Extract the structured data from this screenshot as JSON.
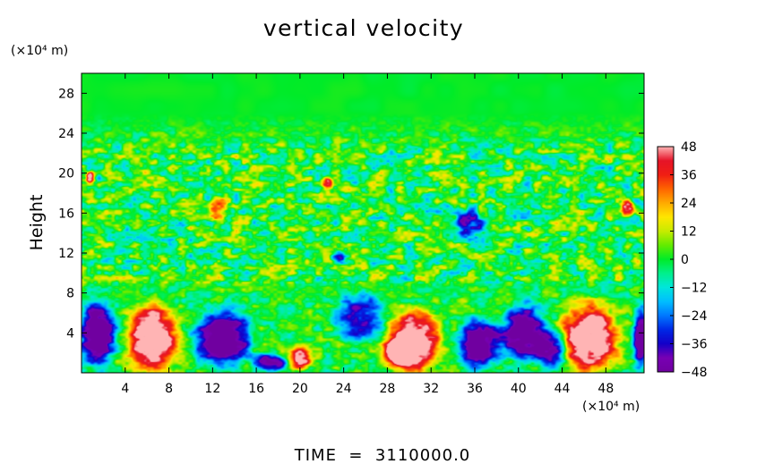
{
  "chart_data": {
    "type": "heatmap",
    "title": "vertical velocity",
    "xlabel": "",
    "x_unit": "(×10⁴ m)",
    "ylabel": "Height",
    "y_unit": "(×10⁴ m)",
    "xlim": [
      0,
      51.5
    ],
    "ylim": [
      0,
      30
    ],
    "x_ticks": [
      "4",
      "8",
      "12",
      "16",
      "20",
      "24",
      "28",
      "32",
      "36",
      "40",
      "44",
      "48"
    ],
    "y_ticks": [
      "4",
      "8",
      "12",
      "16",
      "20",
      "24",
      "28"
    ],
    "colorbar": {
      "min": -48,
      "max": 48,
      "ticks": [
        "48",
        "36",
        "24",
        "12",
        "0",
        "−12",
        "−24",
        "−36",
        "−48"
      ]
    },
    "features": [
      {
        "kind": "updraft",
        "x": 6.5,
        "y": 3.5,
        "rx": 2.3,
        "ry": 3.5,
        "value": 48
      },
      {
        "kind": "updraft",
        "x": 30.5,
        "y": 3.2,
        "rx": 2.4,
        "ry": 3.0,
        "value": 46
      },
      {
        "kind": "updraft",
        "x": 46.5,
        "y": 3.5,
        "rx": 2.6,
        "ry": 3.4,
        "value": 48
      },
      {
        "kind": "updraft",
        "x": 29.0,
        "y": 2.0,
        "rx": 1.6,
        "ry": 1.5,
        "value": 40
      },
      {
        "kind": "updraft",
        "x": 20.0,
        "y": 1.5,
        "rx": 1.1,
        "ry": 1.1,
        "value": 42
      },
      {
        "kind": "downdraft",
        "x": 1.5,
        "y": 4.0,
        "rx": 1.6,
        "ry": 3.2,
        "value": -48
      },
      {
        "kind": "downdraft",
        "x": 13.0,
        "y": 3.5,
        "rx": 2.6,
        "ry": 2.8,
        "value": -46
      },
      {
        "kind": "downdraft",
        "x": 17.2,
        "y": 1.0,
        "rx": 1.5,
        "ry": 0.9,
        "value": -38
      },
      {
        "kind": "downdraft",
        "x": 25.5,
        "y": 5.5,
        "rx": 2.2,
        "ry": 2.3,
        "value": -30
      },
      {
        "kind": "downdraft",
        "x": 36.5,
        "y": 3.0,
        "rx": 2.0,
        "ry": 2.5,
        "value": -44
      },
      {
        "kind": "downdraft",
        "x": 40.5,
        "y": 4.0,
        "rx": 1.9,
        "ry": 2.8,
        "value": -46
      },
      {
        "kind": "downdraft",
        "x": 43.0,
        "y": 2.5,
        "rx": 1.4,
        "ry": 2.0,
        "value": -38
      },
      {
        "kind": "downdraft",
        "x": 51.2,
        "y": 3.5,
        "rx": 0.7,
        "ry": 3.0,
        "value": -44
      },
      {
        "kind": "downdraft",
        "x": 35.5,
        "y": 15.0,
        "rx": 1.6,
        "ry": 1.4,
        "value": -30
      },
      {
        "kind": "updraft",
        "x": 12.5,
        "y": 16.5,
        "rx": 0.8,
        "ry": 1.2,
        "value": 30
      },
      {
        "kind": "updraft",
        "x": 0.8,
        "y": 19.5,
        "rx": 0.4,
        "ry": 0.6,
        "value": 40
      },
      {
        "kind": "updraft",
        "x": 22.5,
        "y": 19.0,
        "rx": 0.5,
        "ry": 0.6,
        "value": 36
      },
      {
        "kind": "updraft",
        "x": 50.0,
        "y": 16.5,
        "rx": 0.6,
        "ry": 0.9,
        "value": 38
      },
      {
        "kind": "downdraft",
        "x": 23.5,
        "y": 11.5,
        "rx": 0.6,
        "ry": 0.7,
        "value": -28
      }
    ]
  },
  "footer": {
    "time_label": "TIME  =  3110000.0"
  }
}
